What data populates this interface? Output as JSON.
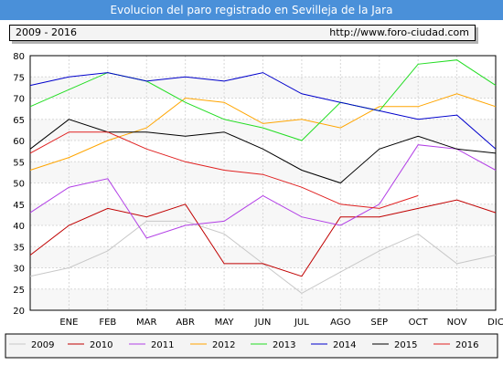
{
  "header": {
    "title": "Evolucion del paro registrado en Sevilleja de la Jara",
    "period": "2009 - 2016",
    "url": "http://www.foro-ciudad.com"
  },
  "colors": {
    "title_bg": "#4a90d9",
    "plot_bg": "#f7f7f7",
    "band_alt": "#ffffff"
  },
  "chart_data": {
    "type": "line",
    "title": "Evolucion del paro registrado en Sevilleja de la Jara",
    "xlabel": "",
    "ylabel": "",
    "categories": [
      "ENE",
      "FEB",
      "MAR",
      "ABR",
      "MAY",
      "JUN",
      "JUL",
      "AGO",
      "SEP",
      "OCT",
      "NOV",
      "DIC"
    ],
    "ylim": [
      20,
      80
    ],
    "yticks": [
      20,
      25,
      30,
      35,
      40,
      45,
      50,
      55,
      60,
      65,
      70,
      75,
      80
    ],
    "grid": true,
    "legend": "bottom",
    "series": [
      {
        "name": "2009",
        "color": "#c8c8c8",
        "start": 28,
        "values": [
          30,
          34,
          41,
          41,
          38,
          31,
          24,
          29,
          34,
          38,
          31,
          33
        ]
      },
      {
        "name": "2010",
        "color": "#c00000",
        "start": 33,
        "values": [
          40,
          44,
          42,
          45,
          31,
          31,
          28,
          42,
          42,
          44,
          46,
          43
        ]
      },
      {
        "name": "2011",
        "color": "#b23fe6",
        "start": 43,
        "values": [
          49,
          51,
          37,
          40,
          41,
          47,
          42,
          40,
          45,
          59,
          58,
          53
        ]
      },
      {
        "name": "2012",
        "color": "#ffa500",
        "start": 53,
        "values": [
          56,
          60,
          63,
          70,
          69,
          64,
          65,
          63,
          68,
          68,
          71,
          68
        ]
      },
      {
        "name": "2013",
        "color": "#22dd22",
        "start": 68,
        "values": [
          72,
          76,
          74,
          69,
          65,
          63,
          60,
          69,
          67,
          78,
          79,
          73
        ]
      },
      {
        "name": "2014",
        "color": "#0000cc",
        "start": 73,
        "values": [
          75,
          76,
          74,
          75,
          74,
          76,
          71,
          69,
          67,
          65,
          66,
          58
        ]
      },
      {
        "name": "2015",
        "color": "#000000",
        "start": 58,
        "values": [
          65,
          62,
          62,
          61,
          62,
          58,
          53,
          50,
          58,
          61,
          58,
          57
        ]
      },
      {
        "name": "2016",
        "color": "#e02020",
        "start": 57,
        "values": [
          62,
          62,
          58,
          55,
          53,
          52,
          49,
          45,
          44,
          47,
          null,
          null
        ]
      }
    ]
  }
}
